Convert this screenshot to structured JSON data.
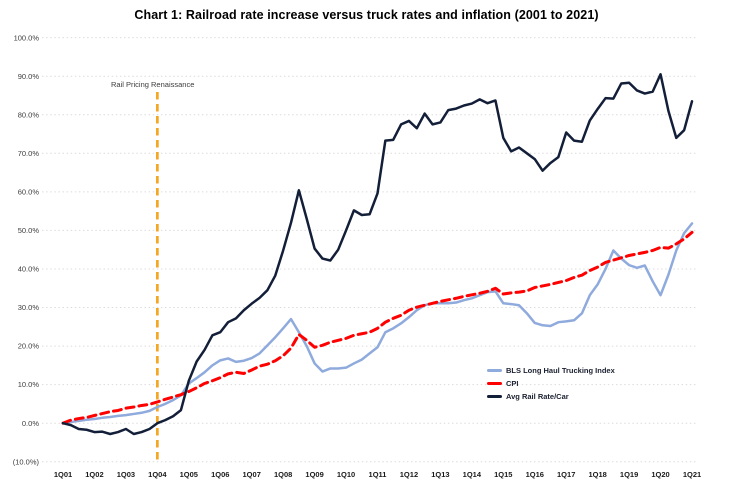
{
  "title": "Chart 1: Railroad rate increase versus truck rates and inflation (2001 to 2021)",
  "chart_data": {
    "type": "line",
    "title": "Chart 1: Railroad rate increase versus truck rates and inflation (2001 to 2021)",
    "x_unit": "quarter",
    "x_start": "1Q01",
    "x_end": "1Q21",
    "x_tick_labels": [
      "1Q01",
      "1Q02",
      "1Q03",
      "1Q04",
      "1Q05",
      "1Q06",
      "1Q07",
      "1Q08",
      "1Q09",
      "1Q10",
      "1Q11",
      "1Q12",
      "1Q13",
      "1Q14",
      "1Q15",
      "1Q16",
      "1Q17",
      "1Q18",
      "1Q19",
      "1Q20",
      "1Q21"
    ],
    "ylim": [
      -10,
      100
    ],
    "y_ticks": [
      {
        "value": 100,
        "label": "100.0%"
      },
      {
        "value": 90,
        "label": "90.0%"
      },
      {
        "value": 80,
        "label": "80.0%"
      },
      {
        "value": 70,
        "label": "70.0%"
      },
      {
        "value": 60,
        "label": "60.0%"
      },
      {
        "value": 50,
        "label": "50.0%"
      },
      {
        "value": 40,
        "label": "40.0%"
      },
      {
        "value": 30,
        "label": "30.0%"
      },
      {
        "value": 20,
        "label": "20.0%"
      },
      {
        "value": 10,
        "label": "10.0%"
      },
      {
        "value": 0,
        "label": "0.0%"
      },
      {
        "value": -10,
        "label": "(10.0%)"
      }
    ],
    "grid": "horizontal-dotted",
    "legend_position": "inside-bottom-right",
    "annotation": {
      "label": "Rail Pricing Renaissance",
      "x_index": 12,
      "x_label": "1Q04",
      "color": "#F5A623",
      "line_style": "dashed-vertical"
    },
    "series": [
      {
        "name": "BLS Long Haul Trucking Index",
        "color": "#8FAADC",
        "line_style": "solid",
        "values": [
          0,
          0.3,
          0.6,
          0.9,
          1.1,
          1.4,
          1.6,
          1.9,
          2.1,
          2.4,
          2.7,
          3.2,
          4.2,
          5,
          6,
          7.2,
          10.3,
          11.7,
          13.2,
          15,
          16.3,
          16.8,
          15.9,
          16.2,
          16.9,
          18.1,
          20.2,
          22.3,
          24.6,
          27,
          23.6,
          20,
          15.5,
          13.4,
          14.2,
          14.2,
          14.4,
          15.5,
          16.5,
          18.1,
          19.7,
          23.6,
          24.6,
          25.9,
          27.5,
          29.3,
          30.6,
          31.1,
          31.1,
          31.1,
          31.3,
          31.9,
          32.4,
          33.2,
          34,
          34.2,
          31.1,
          30.9,
          30.6,
          28.5,
          26,
          25.4,
          25.2,
          26.2,
          26.4,
          26.7,
          28.5,
          33.2,
          36,
          40,
          44.8,
          42.7,
          41,
          40.3,
          40.9,
          36.8,
          33.2,
          38.5,
          44.8,
          49.3,
          51.8
        ]
      },
      {
        "name": "CPI",
        "color": "#FF0000",
        "line_style": "dashed",
        "values": [
          0,
          0.8,
          1.2,
          1.5,
          2,
          2.5,
          3,
          3.3,
          3.9,
          4.2,
          4.6,
          4.9,
          5.5,
          6.2,
          6.8,
          7.4,
          8.2,
          9.2,
          10.3,
          11,
          11.8,
          12.8,
          13.2,
          12.9,
          13.8,
          14.8,
          15.3,
          16.2,
          17.5,
          19.5,
          23,
          21.5,
          19.7,
          20.2,
          21,
          21.5,
          22,
          22.8,
          23.2,
          23.6,
          24.6,
          26.2,
          27.2,
          28,
          29.3,
          30.1,
          30.6,
          31.1,
          31.6,
          32,
          32.4,
          32.9,
          33.3,
          33.7,
          34.2,
          35,
          33.5,
          33.8,
          34,
          34.3,
          35.2,
          35.6,
          36,
          36.5,
          37,
          37.8,
          38.4,
          39.6,
          40.5,
          41.7,
          42.3,
          42.9,
          43.5,
          43.9,
          44.3,
          44.8,
          45.6,
          45.4,
          46.5,
          47.8,
          49.5
        ]
      },
      {
        "name": "Avg Rail Rate/Car",
        "color": "#131F38",
        "line_style": "solid",
        "values": [
          0,
          -0.5,
          -1.5,
          -1.7,
          -2.3,
          -2.2,
          -2.8,
          -2.3,
          -1.5,
          -2.8,
          -2.3,
          -1.5,
          0,
          0.8,
          1.8,
          3.4,
          11,
          16,
          19,
          22.8,
          23.6,
          26.2,
          27.2,
          29.3,
          31,
          32.5,
          34.5,
          38.3,
          44.8,
          52,
          60.4,
          53,
          45.3,
          42.7,
          42.2,
          45,
          50,
          55.2,
          54,
          54.2,
          59.6,
          73.3,
          73.5,
          77.5,
          78.4,
          76.5,
          80.3,
          77.5,
          78,
          81.2,
          81.6,
          82.4,
          82.9,
          84,
          83,
          83.7,
          74,
          70.5,
          71.5,
          70,
          68.5,
          65.5,
          67.5,
          69,
          75.4,
          73.3,
          73,
          78.5,
          81.5,
          84.3,
          84.2,
          88.1,
          88.3,
          86.3,
          85.5,
          86,
          90.5,
          81,
          74,
          76,
          83.5
        ]
      }
    ]
  },
  "colors": {
    "background": "#FFFFFF",
    "gridline": "#DCDCDC",
    "axis_text": "#3C3C3C",
    "title_text": "#000000",
    "annotation_line": "#F5A623"
  }
}
